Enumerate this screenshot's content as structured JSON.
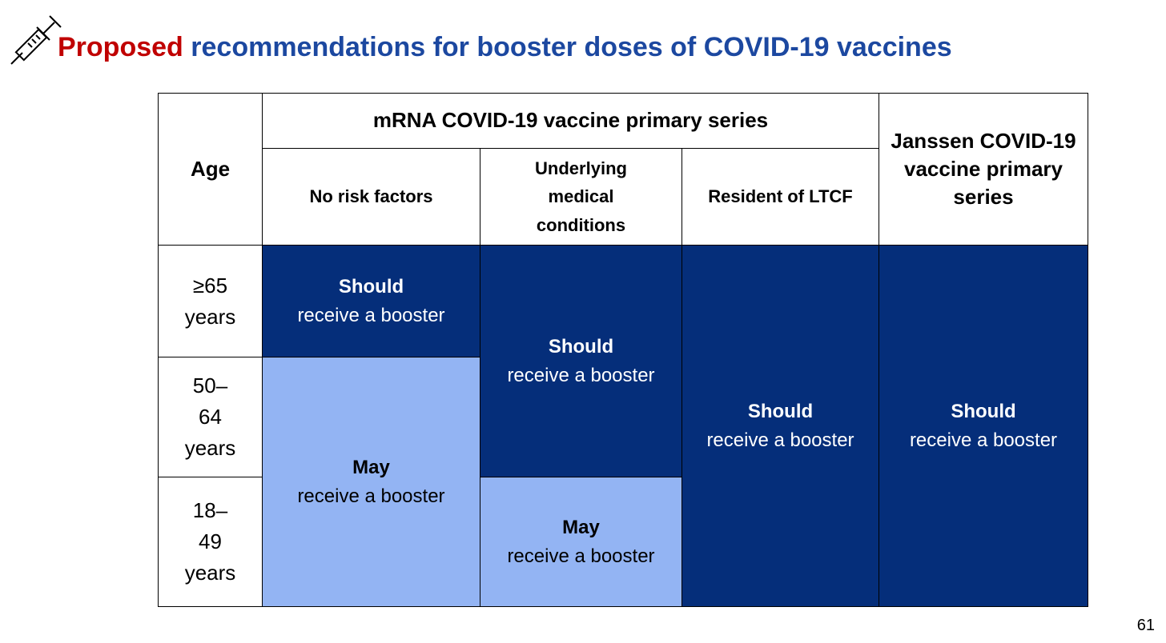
{
  "header": {
    "title_highlight": "Proposed",
    "title_rest": "recommendations for booster doses of COVID-19 vaccines"
  },
  "table": {
    "headers": {
      "age": "Age",
      "mrna": "mRNA COVID-19 vaccine primary series",
      "janssen": "Janssen COVID-19 vaccine primary series",
      "subheaders": [
        "No risk factors",
        "Underlying medical conditions",
        "Resident of LTCF"
      ]
    },
    "ages": [
      "≥65 years",
      "50–64 years",
      "18–49 years"
    ],
    "cells": [
      {
        "strong": "Should",
        "text": "receive a booster"
      },
      {
        "strong": "May",
        "text": "receive a booster"
      },
      {
        "strong": "Should",
        "text": "receive a booster"
      },
      {
        "strong": "May",
        "text": "receive a booster"
      },
      {
        "strong": "Should",
        "text": "receive a booster"
      },
      {
        "strong": "Should",
        "text": "receive a booster"
      }
    ]
  },
  "footer": {
    "page_number": "61"
  }
}
